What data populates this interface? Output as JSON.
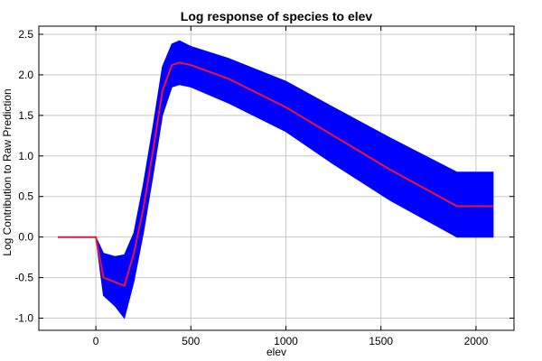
{
  "chart_data": {
    "type": "line",
    "title": "Log response of species to elev",
    "xlabel": "elev",
    "ylabel": "Log Contribution to Raw Prediction",
    "xlim": [
      -300,
      2200
    ],
    "ylim": [
      -1.15,
      2.6
    ],
    "xticks": [
      0,
      500,
      1000,
      1500,
      2000
    ],
    "yticks": [
      -1.0,
      -0.5,
      0.0,
      0.5,
      1.0,
      1.5,
      2.0,
      2.5
    ],
    "xtick_labels": [
      "0",
      "500",
      "1000",
      "1500",
      "2000"
    ],
    "ytick_labels": [
      "-1.0",
      "-0.5",
      "0.0",
      "0.5",
      "1.0",
      "1.5",
      "2.0",
      "2.5"
    ],
    "grid": true,
    "series": [
      {
        "role": "mean",
        "color": "#e8143c",
        "x": [
          -200,
          0,
          40,
          150,
          200,
          250,
          300,
          350,
          400,
          440,
          500,
          700,
          1000,
          1250,
          1550,
          1900,
          2090
        ],
        "y": [
          0.0,
          0.0,
          -0.5,
          -0.6,
          -0.2,
          0.35,
          1.05,
          1.8,
          2.12,
          2.15,
          2.12,
          1.95,
          1.6,
          1.25,
          0.83,
          0.38,
          0.38
        ]
      },
      {
        "role": "upper",
        "color": "#0000ff",
        "x": [
          0,
          40,
          100,
          150,
          200,
          250,
          300,
          350,
          400,
          440,
          500,
          700,
          1000,
          1250,
          1550,
          1900,
          2090
        ],
        "y": [
          0.0,
          -0.2,
          -0.24,
          -0.22,
          0.05,
          0.65,
          1.35,
          2.1,
          2.38,
          2.42,
          2.35,
          2.2,
          1.92,
          1.6,
          1.22,
          0.8,
          0.8
        ]
      },
      {
        "role": "lower",
        "color": "#0000ff",
        "x": [
          0,
          40,
          100,
          150,
          200,
          250,
          300,
          350,
          400,
          440,
          500,
          700,
          1000,
          1250,
          1550,
          1900,
          2090
        ],
        "y": [
          0.0,
          -0.72,
          -0.85,
          -1.0,
          -0.55,
          0.05,
          0.75,
          1.5,
          1.85,
          1.88,
          1.85,
          1.65,
          1.3,
          0.9,
          0.45,
          0.0,
          0.0
        ]
      }
    ]
  }
}
